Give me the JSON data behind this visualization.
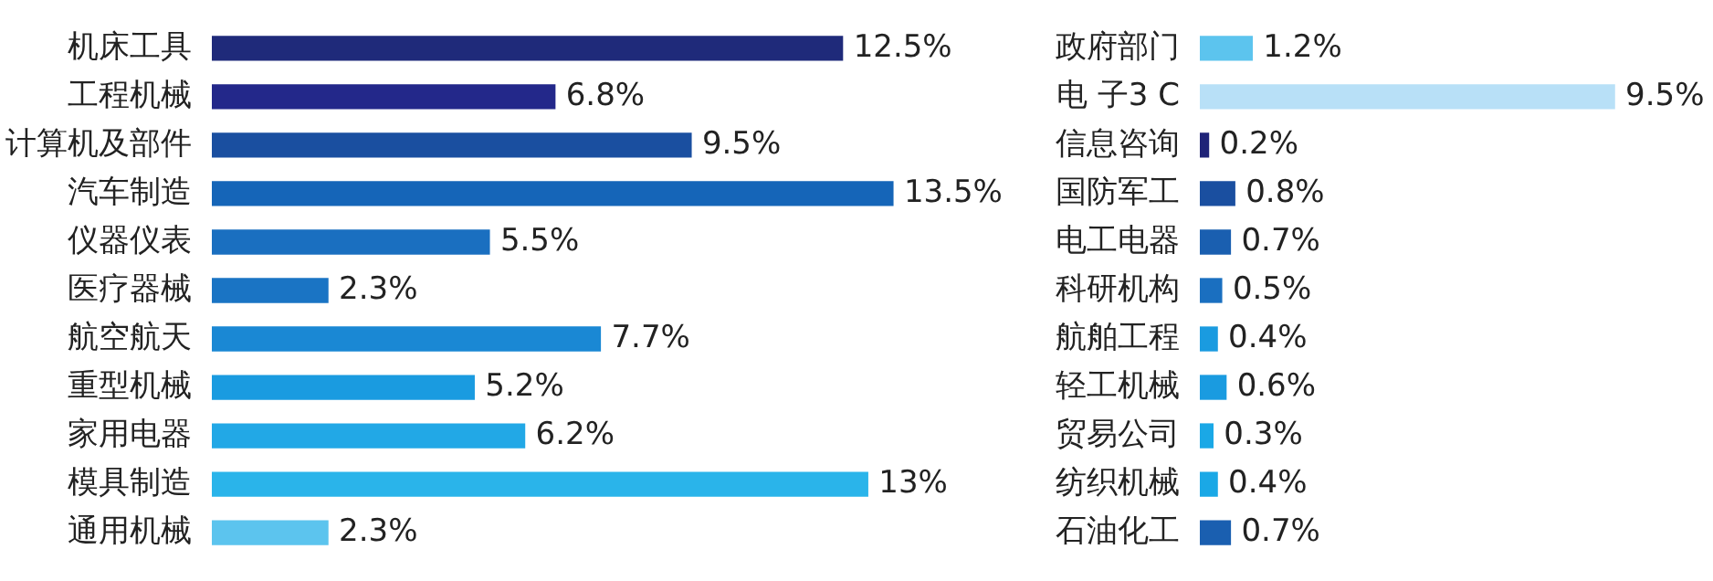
{
  "chart_data": [
    {
      "type": "bar",
      "orientation": "horizontal",
      "categories": [
        "机床工具",
        "工程机械",
        "计算机及部件",
        "汽车制造",
        "仪器仪表",
        "医疗器械",
        "航空航天",
        "重型机械",
        "家用电器",
        "模具制造",
        "通用机械"
      ],
      "values": [
        12.5,
        6.8,
        9.5,
        13.5,
        5.5,
        2.3,
        7.7,
        5.2,
        6.2,
        13,
        2.3
      ],
      "colors": [
        "#1f2a7a",
        "#23288a",
        "#1a4fa0",
        "#1565b8",
        "#1a6fc0",
        "#1a74c4",
        "#1a88d4",
        "#1a9be0",
        "#22a8e6",
        "#2ab4ea",
        "#5cc4ee"
      ],
      "value_labels": [
        "12.5%",
        "6.8%",
        "9.5%",
        "13.5%",
        "5.5%",
        "2.3%",
        "7.7%",
        "5.2%",
        "6.2%",
        "13%",
        "2.3%"
      ]
    },
    {
      "type": "bar",
      "orientation": "horizontal",
      "categories": [
        "政府部门",
        "电 子3 C",
        "信息咨询",
        "国防军工",
        "电工电器",
        "科研机构",
        "航舶工程",
        "轻工机械",
        "贸易公司",
        "纺织机械",
        "石油化工"
      ],
      "values": [
        1.2,
        9.5,
        0.2,
        0.8,
        0.7,
        0.5,
        0.4,
        0.6,
        0.3,
        0.4,
        0.7
      ],
      "colors": [
        "#5cc4ee",
        "#b8e0f7",
        "#1f2378",
        "#1a4fa0",
        "#1a5fb0",
        "#1a6fc0",
        "#1a9be0",
        "#1a9be0",
        "#1aa8e6",
        "#1aa8e6",
        "#1a5fb0"
      ],
      "value_labels": [
        "1.2%",
        "9.5%",
        "0.2%",
        "0.8%",
        "0.7%",
        "0.5%",
        "0.4%",
        "0.6%",
        "0.3%",
        "0.4%",
        "0.7%"
      ]
    }
  ]
}
